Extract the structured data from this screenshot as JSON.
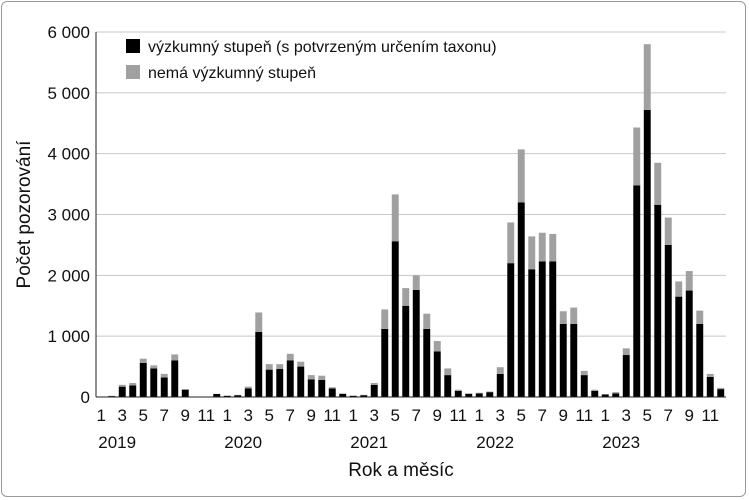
{
  "chart_data": {
    "type": "bar",
    "stacked": true,
    "xlabel": "Rok a měsíc",
    "ylabel": "Počet pozorování",
    "ylim": [
      0,
      6000
    ],
    "yticks": [
      0,
      1000,
      2000,
      3000,
      4000,
      5000,
      6000
    ],
    "ytick_labels": [
      "0",
      "1 000",
      "2 000",
      "3 000",
      "4 000",
      "5 000",
      "6 000"
    ],
    "years": [
      "2019",
      "2020",
      "2021",
      "2022",
      "2023"
    ],
    "month_tick_labels": [
      "1",
      "3",
      "5",
      "7",
      "9",
      "11"
    ],
    "legend_position": "top-center",
    "grid": "horizontal",
    "categories": [
      "2019-01",
      "2019-02",
      "2019-03",
      "2019-04",
      "2019-05",
      "2019-06",
      "2019-07",
      "2019-08",
      "2019-09",
      "2019-10",
      "2019-11",
      "2019-12",
      "2020-01",
      "2020-02",
      "2020-03",
      "2020-04",
      "2020-05",
      "2020-06",
      "2020-07",
      "2020-08",
      "2020-09",
      "2020-10",
      "2020-11",
      "2020-12",
      "2021-01",
      "2021-02",
      "2021-03",
      "2021-04",
      "2021-05",
      "2021-06",
      "2021-07",
      "2021-08",
      "2021-09",
      "2021-10",
      "2021-11",
      "2021-12",
      "2022-01",
      "2022-02",
      "2022-03",
      "2022-04",
      "2022-05",
      "2022-06",
      "2022-07",
      "2022-08",
      "2022-09",
      "2022-10",
      "2022-11",
      "2022-12",
      "2023-01",
      "2023-02",
      "2023-03",
      "2023-04",
      "2023-05",
      "2023-06",
      "2023-07",
      "2023-08",
      "2023-09",
      "2023-10",
      "2023-11",
      "2023-12"
    ],
    "series": [
      {
        "name": "výzkumný stupeň (s potvrzeným určením taxonu)",
        "color": "#000000",
        "values": [
          0,
          15,
          170,
          190,
          560,
          470,
          320,
          600,
          120,
          0,
          0,
          50,
          20,
          30,
          140,
          1070,
          450,
          460,
          600,
          500,
          290,
          280,
          140,
          50,
          20,
          30,
          200,
          1120,
          2560,
          1500,
          1760,
          1120,
          750,
          360,
          100,
          50,
          60,
          80,
          380,
          2200,
          3200,
          2100,
          2230,
          2230,
          1200,
          1200,
          360,
          100,
          40,
          60,
          690,
          3480,
          4720,
          3160,
          2500,
          1650,
          1750,
          1200,
          330,
          130
        ]
      },
      {
        "name": "nemá výzkumný stupeň",
        "color": "#a0a0a0",
        "values": [
          0,
          5,
          30,
          40,
          70,
          50,
          60,
          100,
          10,
          0,
          0,
          0,
          5,
          5,
          30,
          320,
          90,
          80,
          110,
          80,
          70,
          70,
          20,
          10,
          5,
          5,
          30,
          320,
          770,
          290,
          240,
          250,
          170,
          110,
          20,
          10,
          10,
          10,
          110,
          670,
          870,
          540,
          470,
          450,
          210,
          270,
          70,
          20,
          10,
          20,
          110,
          950,
          1080,
          690,
          450,
          250,
          320,
          220,
          50,
          20
        ]
      }
    ]
  }
}
